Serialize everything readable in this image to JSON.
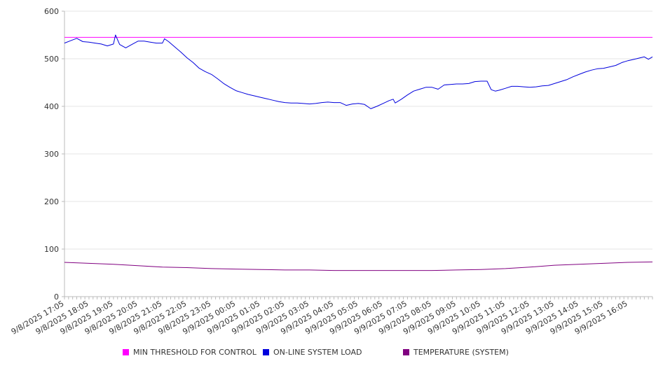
{
  "chart_data": {
    "type": "line",
    "title": "",
    "xlabel": "",
    "ylabel": "",
    "ylim": [
      0,
      600
    ],
    "y_ticks": [
      0,
      100,
      200,
      300,
      400,
      500,
      600
    ],
    "grid": "horizontal",
    "legend_position": "bottom",
    "x_start": "9/8/2025 17:05",
    "x_end": "9/9/2025 17:05",
    "x_tick_labels": [
      "9/8/2025 17:05",
      "9/8/2025 18:05",
      "9/8/2025 19:05",
      "9/8/2025 20:05",
      "9/8/2025 21:05",
      "9/8/2025 22:05",
      "9/8/2025 23:05",
      "9/9/2025 00:05",
      "9/9/2025 01:05",
      "9/9/2025 02:05",
      "9/9/2025 03:05",
      "9/9/2025 04:05",
      "9/9/2025 05:05",
      "9/9/2025 06:05",
      "9/9/2025 07:05",
      "9/9/2025 08:05",
      "9/9/2025 09:05",
      "9/9/2025 10:05",
      "9/9/2025 11:05",
      "9/9/2025 12:05",
      "9/9/2025 13:05",
      "9/9/2025 14:05",
      "9/9/2025 15:05",
      "9/9/2025 16:05"
    ],
    "series": [
      {
        "name": "MIN THRESHOLD FOR CONTROL",
        "color": "#ff00ff",
        "points": [
          [
            "9/8/2025 17:05",
            545
          ],
          [
            "9/9/2025 17:05",
            545
          ]
        ]
      },
      {
        "name": "ON-LINE SYSTEM LOAD",
        "color": "#0000dd",
        "points": [
          [
            "9/8/2025 17:05",
            533
          ],
          [
            "9/8/2025 17:20",
            538
          ],
          [
            "9/8/2025 17:35",
            543
          ],
          [
            "9/8/2025 17:50",
            536
          ],
          [
            "9/8/2025 18:05",
            535
          ],
          [
            "9/8/2025 18:20",
            533
          ],
          [
            "9/8/2025 18:35",
            531
          ],
          [
            "9/8/2025 18:50",
            527
          ],
          [
            "9/8/2025 19:05",
            531
          ],
          [
            "9/8/2025 19:10",
            550
          ],
          [
            "9/8/2025 19:20",
            530
          ],
          [
            "9/8/2025 19:35",
            523
          ],
          [
            "9/8/2025 19:50",
            530
          ],
          [
            "9/8/2025 20:05",
            537
          ],
          [
            "9/8/2025 20:20",
            537
          ],
          [
            "9/8/2025 20:35",
            535
          ],
          [
            "9/8/2025 20:50",
            533
          ],
          [
            "9/8/2025 21:05",
            533
          ],
          [
            "9/8/2025 21:10",
            542
          ],
          [
            "9/8/2025 21:20",
            536
          ],
          [
            "9/8/2025 21:35",
            525
          ],
          [
            "9/8/2025 21:50",
            514
          ],
          [
            "9/8/2025 22:05",
            502
          ],
          [
            "9/8/2025 22:20",
            492
          ],
          [
            "9/8/2025 22:35",
            480
          ],
          [
            "9/8/2025 22:50",
            473
          ],
          [
            "9/8/2025 23:05",
            467
          ],
          [
            "9/8/2025 23:20",
            458
          ],
          [
            "9/8/2025 23:35",
            448
          ],
          [
            "9/8/2025 23:50",
            440
          ],
          [
            "9/9/2025 00:05",
            433
          ],
          [
            "9/9/2025 00:20",
            429
          ],
          [
            "9/9/2025 00:35",
            425
          ],
          [
            "9/9/2025 00:50",
            422
          ],
          [
            "9/9/2025 01:05",
            419
          ],
          [
            "9/9/2025 01:20",
            416
          ],
          [
            "9/9/2025 01:35",
            413
          ],
          [
            "9/9/2025 01:50",
            410
          ],
          [
            "9/9/2025 02:05",
            408
          ],
          [
            "9/9/2025 02:20",
            407
          ],
          [
            "9/9/2025 02:35",
            407
          ],
          [
            "9/9/2025 02:50",
            406
          ],
          [
            "9/9/2025 03:05",
            405
          ],
          [
            "9/9/2025 03:20",
            406
          ],
          [
            "9/9/2025 03:35",
            408
          ],
          [
            "9/9/2025 03:50",
            409
          ],
          [
            "9/9/2025 04:05",
            408
          ],
          [
            "9/9/2025 04:20",
            408
          ],
          [
            "9/9/2025 04:35",
            402
          ],
          [
            "9/9/2025 04:50",
            405
          ],
          [
            "9/9/2025 05:05",
            406
          ],
          [
            "9/9/2025 05:20",
            404
          ],
          [
            "9/9/2025 05:35",
            395
          ],
          [
            "9/9/2025 05:50",
            400
          ],
          [
            "9/9/2025 06:05",
            406
          ],
          [
            "9/9/2025 06:20",
            412
          ],
          [
            "9/9/2025 06:30",
            415
          ],
          [
            "9/9/2025 06:35",
            407
          ],
          [
            "9/9/2025 06:50",
            415
          ],
          [
            "9/9/2025 07:05",
            424
          ],
          [
            "9/9/2025 07:20",
            432
          ],
          [
            "9/9/2025 07:35",
            436
          ],
          [
            "9/9/2025 07:50",
            440
          ],
          [
            "9/9/2025 08:05",
            440
          ],
          [
            "9/9/2025 08:20",
            436
          ],
          [
            "9/9/2025 08:35",
            445
          ],
          [
            "9/9/2025 08:50",
            446
          ],
          [
            "9/9/2025 09:05",
            447
          ],
          [
            "9/9/2025 09:20",
            447
          ],
          [
            "9/9/2025 09:35",
            448
          ],
          [
            "9/9/2025 09:50",
            452
          ],
          [
            "9/9/2025 10:05",
            453
          ],
          [
            "9/9/2025 10:20",
            453
          ],
          [
            "9/9/2025 10:30",
            435
          ],
          [
            "9/9/2025 10:40",
            432
          ],
          [
            "9/9/2025 10:50",
            434
          ],
          [
            "9/9/2025 11:05",
            438
          ],
          [
            "9/9/2025 11:20",
            442
          ],
          [
            "9/9/2025 11:35",
            442
          ],
          [
            "9/9/2025 11:50",
            441
          ],
          [
            "9/9/2025 12:05",
            440
          ],
          [
            "9/9/2025 12:20",
            441
          ],
          [
            "9/9/2025 12:35",
            443
          ],
          [
            "9/9/2025 12:50",
            444
          ],
          [
            "9/9/2025 13:05",
            448
          ],
          [
            "9/9/2025 13:20",
            452
          ],
          [
            "9/9/2025 13:35",
            456
          ],
          [
            "9/9/2025 13:50",
            462
          ],
          [
            "9/9/2025 14:05",
            467
          ],
          [
            "9/9/2025 14:20",
            472
          ],
          [
            "9/9/2025 14:35",
            476
          ],
          [
            "9/9/2025 14:50",
            479
          ],
          [
            "9/9/2025 15:05",
            480
          ],
          [
            "9/9/2025 15:20",
            483
          ],
          [
            "9/9/2025 15:35",
            486
          ],
          [
            "9/9/2025 15:50",
            492
          ],
          [
            "9/9/2025 16:05",
            496
          ],
          [
            "9/9/2025 16:20",
            499
          ],
          [
            "9/9/2025 16:35",
            502
          ],
          [
            "9/9/2025 16:45",
            504
          ],
          [
            "9/9/2025 16:55",
            499
          ],
          [
            "9/9/2025 17:05",
            504
          ]
        ]
      },
      {
        "name": "TEMPERATURE (SYSTEM)",
        "color": "#800080",
        "points": [
          [
            "9/8/2025 17:05",
            72
          ],
          [
            "9/8/2025 18:05",
            70
          ],
          [
            "9/8/2025 19:05",
            68
          ],
          [
            "9/8/2025 20:05",
            65
          ],
          [
            "9/8/2025 21:05",
            62
          ],
          [
            "9/8/2025 22:05",
            61
          ],
          [
            "9/8/2025 23:05",
            59
          ],
          [
            "9/9/2025 00:05",
            58
          ],
          [
            "9/9/2025 01:05",
            57
          ],
          [
            "9/9/2025 02:05",
            56
          ],
          [
            "9/9/2025 03:05",
            56
          ],
          [
            "9/9/2025 04:05",
            55
          ],
          [
            "9/9/2025 05:05",
            55
          ],
          [
            "9/9/2025 06:05",
            55
          ],
          [
            "9/9/2025 07:05",
            55
          ],
          [
            "9/9/2025 08:05",
            55
          ],
          [
            "9/9/2025 09:05",
            56
          ],
          [
            "9/9/2025 10:05",
            57
          ],
          [
            "9/9/2025 11:05",
            59
          ],
          [
            "9/9/2025 12:05",
            62
          ],
          [
            "9/9/2025 13:05",
            66
          ],
          [
            "9/9/2025 14:05",
            68
          ],
          [
            "9/9/2025 15:05",
            70
          ],
          [
            "9/9/2025 16:05",
            72
          ],
          [
            "9/9/2025 17:05",
            73
          ]
        ]
      }
    ]
  }
}
